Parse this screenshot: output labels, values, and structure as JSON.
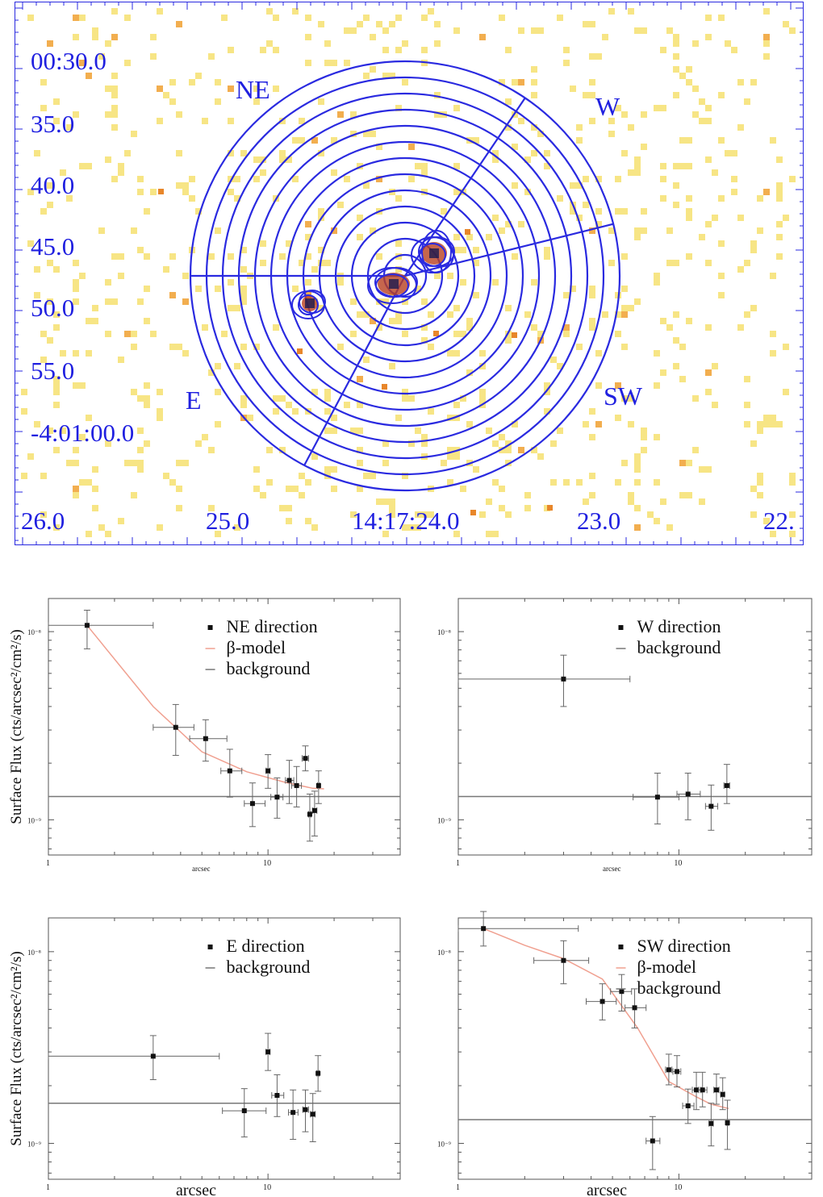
{
  "image_panel": {
    "dec_labels": [
      "00:30.0",
      "35.0",
      "40.0",
      "45.0",
      "50.0",
      "55.0",
      "-4:01:00.0"
    ],
    "ra_labels": [
      "26.0",
      "25.0",
      "14:17:24.0",
      "23.0",
      "22."
    ],
    "direction_labels": {
      "NE": "NE",
      "W": "W",
      "SW": "SW",
      "E": "E"
    },
    "colors": {
      "overlay": "#2a2ae0",
      "pixels": "#f6e070",
      "source": "#b84020",
      "source_core": "#1a1a50"
    }
  },
  "common": {
    "ylabel": "Surface Flux (cts/arcsec²/cm²/s)",
    "xlabel": "arcsec",
    "ytick_labels": [
      "10⁻⁸",
      "10⁻⁹"
    ],
    "xtick_labels": [
      "1",
      "10"
    ]
  },
  "chart_data": [
    {
      "type": "scatter",
      "panel": "NE",
      "xscale": "log",
      "yscale": "log",
      "xlim": [
        1,
        40
      ],
      "ylim": [
        6.5e-10,
        1.5e-08
      ],
      "legend_placement": "top-right",
      "legend": [
        "NE direction",
        "β-model",
        "background"
      ],
      "points": [
        {
          "x": 1.5,
          "y": 1.08e-08,
          "xerr": [
            0.5,
            1.5
          ],
          "yerr": [
            2.7e-09,
            2.2e-09
          ]
        },
        {
          "x": 3.8,
          "y": 3.1e-09,
          "xerr": [
            0.8,
            0.8
          ],
          "yerr": [
            9e-10,
            1e-09
          ]
        },
        {
          "x": 5.2,
          "y": 2.7e-09,
          "xerr": [
            0.8,
            1.3
          ],
          "yerr": [
            6.5e-10,
            7e-10
          ]
        },
        {
          "x": 6.7,
          "y": 1.82e-09,
          "xerr": [
            0.6,
            0.9
          ],
          "yerr": [
            5e-10,
            5.5e-10
          ]
        },
        {
          "x": 8.5,
          "y": 1.22e-09,
          "xerr": [
            0.7,
            1.2
          ],
          "yerr": [
            3e-10,
            3.5e-10
          ]
        },
        {
          "x": 10.0,
          "y": 1.82e-09,
          "xerr": [
            0.2,
            0.2
          ],
          "yerr": [
            3.5e-10,
            4e-10
          ]
        },
        {
          "x": 11.0,
          "y": 1.32e-09,
          "xerr": [
            0.7,
            0.7
          ],
          "yerr": [
            3e-10,
            3.5e-10
          ]
        },
        {
          "x": 12.5,
          "y": 1.62e-09,
          "xerr": [
            0.5,
            0.6
          ],
          "yerr": [
            4e-10,
            4.5e-10
          ]
        },
        {
          "x": 13.5,
          "y": 1.52e-09,
          "xerr": [
            0.7,
            0.7
          ],
          "yerr": [
            3.5e-10,
            4e-10
          ]
        },
        {
          "x": 14.8,
          "y": 2.12e-09,
          "xerr": [
            0.5,
            0.5
          ],
          "yerr": [
            3e-10,
            3.5e-10
          ]
        },
        {
          "x": 15.5,
          "y": 1.07e-09,
          "xerr": [
            0.2,
            0.2
          ],
          "yerr": [
            3e-10,
            3e-10
          ]
        },
        {
          "x": 16.3,
          "y": 1.12e-09,
          "xerr": [
            0.3,
            0.4
          ],
          "yerr": [
            3e-10,
            3e-10
          ]
        },
        {
          "x": 17.0,
          "y": 1.52e-09,
          "xerr": [
            0.2,
            0.2
          ],
          "yerr": [
            3e-10,
            3e-10
          ]
        }
      ],
      "model": {
        "x": [
          1.5,
          3.0,
          5.0,
          8.0,
          12.0,
          16.0,
          18.0
        ],
        "y": [
          1.08e-08,
          4e-09,
          2.3e-09,
          1.8e-09,
          1.58e-09,
          1.47e-09,
          1.46e-09
        ]
      },
      "background": 1.33e-09
    },
    {
      "type": "scatter",
      "panel": "W",
      "xscale": "log",
      "yscale": "log",
      "xlim": [
        1,
        40
      ],
      "ylim": [
        6.5e-10,
        1.5e-08
      ],
      "legend_placement": "top-right",
      "legend": [
        "W direction",
        "background"
      ],
      "points": [
        {
          "x": 3.0,
          "y": 5.6e-09,
          "xerr": [
            2.0,
            3.0
          ],
          "yerr": [
            1.6e-09,
            1.9e-09
          ]
        },
        {
          "x": 8.0,
          "y": 1.32e-09,
          "xerr": [
            1.8,
            2.0
          ],
          "yerr": [
            3.7e-10,
            4.5e-10
          ]
        },
        {
          "x": 11.0,
          "y": 1.37e-09,
          "xerr": [
            1.2,
            1.5
          ],
          "yerr": [
            3.7e-10,
            4e-10
          ]
        },
        {
          "x": 14.0,
          "y": 1.18e-09,
          "xerr": [
            0.8,
            1.0
          ],
          "yerr": [
            3e-10,
            3.5e-10
          ]
        },
        {
          "x": 16.5,
          "y": 1.52e-09,
          "xerr": [
            0.5,
            0.5
          ],
          "yerr": [
            3e-10,
            4.5e-10
          ]
        }
      ],
      "background": 1.33e-09
    },
    {
      "type": "scatter",
      "panel": "E",
      "xscale": "log",
      "yscale": "log",
      "xlim": [
        1,
        40
      ],
      "ylim": [
        6.5e-10,
        1.5e-08
      ],
      "legend_placement": "top-right",
      "legend": [
        "E direction",
        "background"
      ],
      "points": [
        {
          "x": 3.0,
          "y": 2.85e-09,
          "xerr": [
            2.0,
            3.0
          ],
          "yerr": [
            7e-10,
            8e-10
          ]
        },
        {
          "x": 7.8,
          "y": 1.48e-09,
          "xerr": [
            1.6,
            2.0
          ],
          "yerr": [
            4e-10,
            4.5e-10
          ]
        },
        {
          "x": 10.0,
          "y": 3e-09,
          "xerr": [
            0.2,
            0.2
          ],
          "yerr": [
            6e-10,
            7.5e-10
          ]
        },
        {
          "x": 11.0,
          "y": 1.78e-09,
          "xerr": [
            0.6,
            0.8
          ],
          "yerr": [
            4e-10,
            5e-10
          ]
        },
        {
          "x": 13.0,
          "y": 1.45e-09,
          "xerr": [
            0.6,
            0.7
          ],
          "yerr": [
            4e-10,
            4.5e-10
          ]
        },
        {
          "x": 14.8,
          "y": 1.5e-09,
          "xerr": [
            0.4,
            0.5
          ],
          "yerr": [
            3.5e-10,
            4e-10
          ]
        },
        {
          "x": 16.0,
          "y": 1.42e-09,
          "xerr": [
            0.4,
            0.4
          ],
          "yerr": [
            4e-10,
            4e-10
          ]
        },
        {
          "x": 16.9,
          "y": 2.32e-09,
          "xerr": [
            0.2,
            0.2
          ],
          "yerr": [
            4.5e-10,
            5.5e-10
          ]
        }
      ],
      "background": 1.62e-09
    },
    {
      "type": "scatter",
      "panel": "SW",
      "xscale": "log",
      "yscale": "log",
      "xlim": [
        1,
        40
      ],
      "ylim": [
        6.5e-10,
        1.5e-08
      ],
      "legend_placement": "top-right",
      "legend": [
        "SW direction",
        "β-model",
        "background"
      ],
      "points": [
        {
          "x": 1.3,
          "y": 1.32e-08,
          "xerr": [
            0.3,
            2.2
          ],
          "yerr": [
            2.5e-09,
            3e-09
          ]
        },
        {
          "x": 3.0,
          "y": 9e-09,
          "xerr": [
            0.8,
            0.9
          ],
          "yerr": [
            2.2e-09,
            2.4e-09
          ]
        },
        {
          "x": 4.5,
          "y": 5.5e-09,
          "xerr": [
            0.7,
            0.7
          ],
          "yerr": [
            1.1e-09,
            1.3e-09
          ]
        },
        {
          "x": 5.5,
          "y": 6.2e-09,
          "xerr": [
            0.6,
            0.6
          ],
          "yerr": [
            1.3e-09,
            1.4e-09
          ]
        },
        {
          "x": 6.3,
          "y": 5.1e-09,
          "xerr": [
            0.6,
            0.8
          ],
          "yerr": [
            1.1e-09,
            1.3e-09
          ]
        },
        {
          "x": 7.6,
          "y": 1.03e-09,
          "xerr": [
            0.5,
            0.6
          ],
          "yerr": [
            3e-10,
            3.5e-10
          ]
        },
        {
          "x": 9.0,
          "y": 2.42e-09,
          "xerr": [
            0.3,
            0.3
          ],
          "yerr": [
            4e-10,
            5e-10
          ]
        },
        {
          "x": 9.8,
          "y": 2.37e-09,
          "xerr": [
            0.4,
            0.4
          ],
          "yerr": [
            4e-10,
            5e-10
          ]
        },
        {
          "x": 11.0,
          "y": 1.57e-09,
          "xerr": [
            0.6,
            0.7
          ],
          "yerr": [
            3e-10,
            3.5e-10
          ]
        },
        {
          "x": 12.0,
          "y": 1.9e-09,
          "xerr": [
            0.5,
            0.6
          ],
          "yerr": [
            4e-10,
            4.5e-10
          ]
        },
        {
          "x": 12.8,
          "y": 1.9e-09,
          "xerr": [
            0.5,
            0.6
          ],
          "yerr": [
            3.5e-10,
            4.5e-10
          ]
        },
        {
          "x": 14.0,
          "y": 1.27e-09,
          "xerr": [
            0.3,
            0.3
          ],
          "yerr": [
            3e-10,
            3.5e-10
          ]
        },
        {
          "x": 14.8,
          "y": 1.9e-09,
          "xerr": [
            0.4,
            0.4
          ],
          "yerr": [
            3e-10,
            4e-10
          ]
        },
        {
          "x": 15.8,
          "y": 1.8e-09,
          "xerr": [
            0.3,
            0.3
          ],
          "yerr": [
            3e-10,
            4e-10
          ]
        },
        {
          "x": 16.6,
          "y": 1.28e-09,
          "xerr": [
            0.2,
            0.2
          ],
          "yerr": [
            3.5e-10,
            4e-10
          ]
        }
      ],
      "model": {
        "x": [
          1.3,
          2.0,
          3.0,
          4.5,
          6.5,
          9.0,
          12.0,
          14.0,
          16.8
        ],
        "y": [
          1.32e-08,
          1.08e-08,
          9.2e-09,
          7.2e-09,
          4e-09,
          2.1e-09,
          1.75e-09,
          1.6e-09,
          1.52e-09
        ]
      },
      "background": 1.33e-09
    }
  ]
}
